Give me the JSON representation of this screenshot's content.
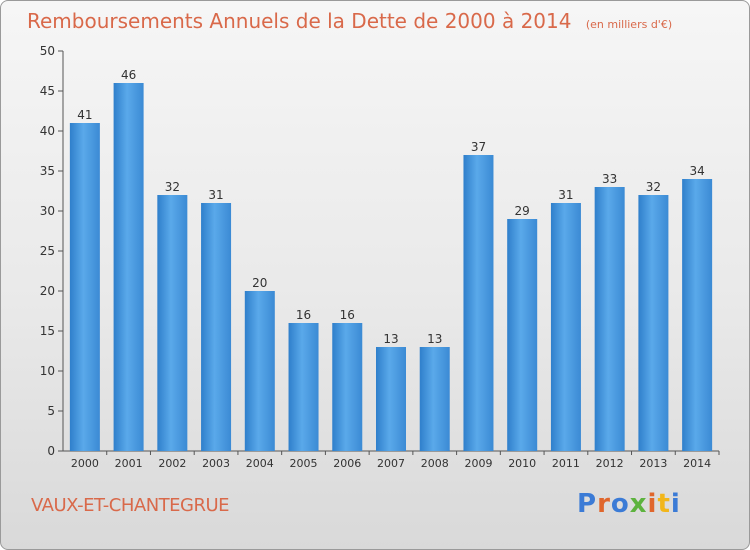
{
  "chart_data": {
    "type": "bar",
    "title": "Remboursements Annuels de la Dette de 2000 à 2014",
    "unit_note": "(en milliers d'€)",
    "categories": [
      "2000",
      "2001",
      "2002",
      "2003",
      "2004",
      "2005",
      "2006",
      "2007",
      "2008",
      "2009",
      "2010",
      "2011",
      "2012",
      "2013",
      "2014"
    ],
    "values": [
      41,
      46,
      32,
      31,
      20,
      16,
      16,
      13,
      13,
      37,
      29,
      31,
      33,
      32,
      34
    ],
    "ylim": [
      0,
      50
    ],
    "yticks": [
      0,
      5,
      10,
      15,
      20,
      25,
      30,
      35,
      40,
      45,
      50
    ],
    "grid": false,
    "bar_color": "#3d8fd8",
    "bar_color_light": "#6fb3ec"
  },
  "footer": {
    "commune": "VAUX-ET-CHANTEGRUE",
    "brand_letters": [
      "P",
      "r",
      "o",
      "x",
      "i",
      "t",
      "i"
    ]
  }
}
